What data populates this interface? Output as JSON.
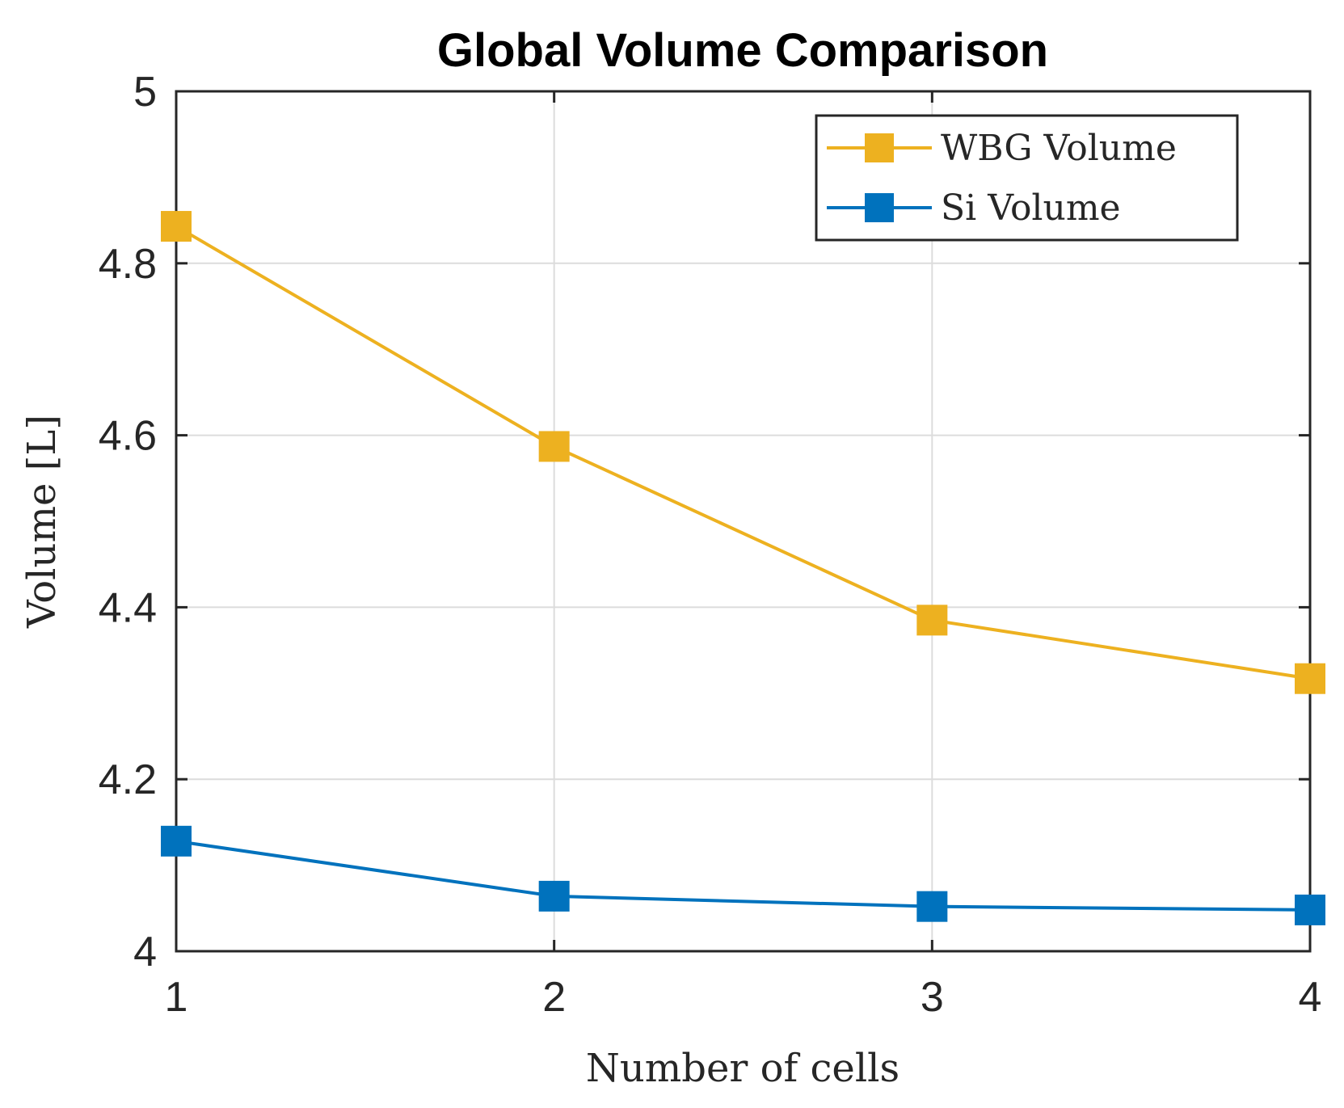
{
  "chart_data": {
    "type": "line",
    "title": "Global Volume Comparison",
    "xlabel": "Number of cells",
    "ylabel": "Volume [L]",
    "x": [
      1,
      2,
      3,
      4
    ],
    "xlim": [
      1,
      4
    ],
    "ylim": [
      4,
      5
    ],
    "xticks": [
      1,
      2,
      3,
      4
    ],
    "xtick_labels": [
      "1",
      "2",
      "3",
      "4"
    ],
    "yticks": [
      4,
      4.2,
      4.4,
      4.6,
      4.8,
      5
    ],
    "ytick_labels": [
      "4",
      "4.2",
      "4.4",
      "4.6",
      "4.8",
      "5"
    ],
    "grid": true,
    "legend_position": "top-right",
    "series": [
      {
        "name": "WBG Volume",
        "color": "#EDB120",
        "marker": "square",
        "values": [
          4.843,
          4.587,
          4.385,
          4.317
        ]
      },
      {
        "name": "Si Volume",
        "color": "#0072BD",
        "marker": "square",
        "values": [
          4.128,
          4.064,
          4.052,
          4.048
        ]
      }
    ]
  }
}
